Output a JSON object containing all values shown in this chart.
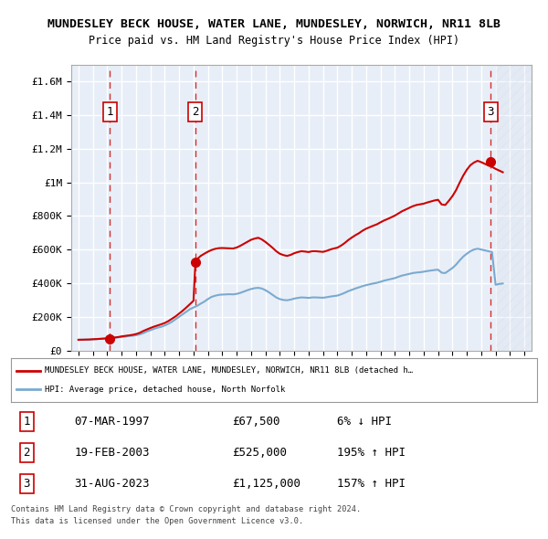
{
  "title1": "MUNDESLEY BECK HOUSE, WATER LANE, MUNDESLEY, NORWICH, NR11 8LB",
  "title2": "Price paid vs. HM Land Registry's House Price Index (HPI)",
  "ylabel": "",
  "background_color": "#ffffff",
  "plot_bg_color": "#e8eef7",
  "grid_color": "#ffffff",
  "hatch_color": "#c8d4e8",
  "sale_color": "#cc0000",
  "hpi_color": "#7aaad0",
  "ylim_max": 1700000,
  "sales": [
    {
      "date_num": 1997.18,
      "price": 67500,
      "label": "1"
    },
    {
      "date_num": 2003.13,
      "price": 525000,
      "label": "2"
    },
    {
      "date_num": 2023.66,
      "price": 1125000,
      "label": "3"
    }
  ],
  "sale_table": [
    {
      "num": "1",
      "date": "07-MAR-1997",
      "price": "£67,500",
      "hpi": "6% ↓ HPI"
    },
    {
      "num": "2",
      "date": "19-FEB-2003",
      "price": "£525,000",
      "hpi": "195% ↑ HPI"
    },
    {
      "num": "3",
      "date": "31-AUG-2023",
      "price": "£1,125,000",
      "hpi": "157% ↑ HPI"
    }
  ],
  "legend_line1": "MUNDESLEY BECK HOUSE, WATER LANE, MUNDESLEY, NORWICH, NR11 8LB (detached h…",
  "legend_line2": "HPI: Average price, detached house, North Norfolk",
  "footer1": "Contains HM Land Registry data © Crown copyright and database right 2024.",
  "footer2": "This data is licensed under the Open Government Licence v3.0.",
  "hpi_data": {
    "years": [
      1995.0,
      1995.25,
      1995.5,
      1995.75,
      1996.0,
      1996.25,
      1996.5,
      1996.75,
      1997.0,
      1997.25,
      1997.5,
      1997.75,
      1998.0,
      1998.25,
      1998.5,
      1998.75,
      1999.0,
      1999.25,
      1999.5,
      1999.75,
      2000.0,
      2000.25,
      2000.5,
      2000.75,
      2001.0,
      2001.25,
      2001.5,
      2001.75,
      2002.0,
      2002.25,
      2002.5,
      2002.75,
      2003.0,
      2003.25,
      2003.5,
      2003.75,
      2004.0,
      2004.25,
      2004.5,
      2004.75,
      2005.0,
      2005.25,
      2005.5,
      2005.75,
      2006.0,
      2006.25,
      2006.5,
      2006.75,
      2007.0,
      2007.25,
      2007.5,
      2007.75,
      2008.0,
      2008.25,
      2008.5,
      2008.75,
      2009.0,
      2009.25,
      2009.5,
      2009.75,
      2010.0,
      2010.25,
      2010.5,
      2010.75,
      2011.0,
      2011.25,
      2011.5,
      2011.75,
      2012.0,
      2012.25,
      2012.5,
      2012.75,
      2013.0,
      2013.25,
      2013.5,
      2013.75,
      2014.0,
      2014.25,
      2014.5,
      2014.75,
      2015.0,
      2015.25,
      2015.5,
      2015.75,
      2016.0,
      2016.25,
      2016.5,
      2016.75,
      2017.0,
      2017.25,
      2017.5,
      2017.75,
      2018.0,
      2018.25,
      2018.5,
      2018.75,
      2019.0,
      2019.25,
      2019.5,
      2019.75,
      2020.0,
      2020.25,
      2020.5,
      2020.75,
      2021.0,
      2021.25,
      2021.5,
      2021.75,
      2022.0,
      2022.25,
      2022.5,
      2022.75,
      2023.0,
      2023.25,
      2023.5,
      2023.75,
      2024.0,
      2024.25,
      2024.5
    ],
    "values": [
      63000,
      63500,
      64000,
      64500,
      66000,
      67000,
      68500,
      70000,
      71500,
      72500,
      75000,
      77000,
      80000,
      82000,
      85000,
      87000,
      90000,
      95000,
      102000,
      112000,
      120000,
      128000,
      135000,
      140000,
      148000,
      158000,
      170000,
      185000,
      200000,
      215000,
      230000,
      245000,
      255000,
      265000,
      278000,
      290000,
      305000,
      318000,
      325000,
      330000,
      332000,
      333000,
      334000,
      333000,
      336000,
      342000,
      350000,
      358000,
      365000,
      370000,
      372000,
      368000,
      358000,
      345000,
      330000,
      315000,
      305000,
      300000,
      298000,
      302000,
      308000,
      312000,
      315000,
      314000,
      312000,
      315000,
      315000,
      314000,
      313000,
      316000,
      320000,
      323000,
      326000,
      333000,
      342000,
      352000,
      360000,
      368000,
      375000,
      382000,
      388000,
      393000,
      398000,
      402000,
      408000,
      415000,
      420000,
      425000,
      430000,
      438000,
      445000,
      450000,
      455000,
      460000,
      463000,
      465000,
      468000,
      472000,
      475000,
      478000,
      480000,
      462000,
      460000,
      475000,
      490000,
      510000,
      535000,
      558000,
      575000,
      590000,
      600000,
      605000,
      600000,
      595000,
      590000,
      585000,
      390000,
      395000,
      398000
    ]
  },
  "price_paid_data": {
    "years": [
      1995.0,
      1995.25,
      1995.5,
      1995.75,
      1996.0,
      1996.25,
      1996.5,
      1996.75,
      1997.0,
      1997.18,
      1997.25,
      1997.5,
      1997.75,
      1998.0,
      1998.25,
      1998.5,
      1998.75,
      1999.0,
      1999.25,
      1999.5,
      1999.75,
      2000.0,
      2000.25,
      2000.5,
      2000.75,
      2001.0,
      2001.25,
      2001.5,
      2001.75,
      2002.0,
      2002.25,
      2002.5,
      2002.75,
      2003.0,
      2003.13,
      2003.25,
      2003.5,
      2003.75,
      2004.0,
      2004.25,
      2004.5,
      2004.75,
      2005.0,
      2005.25,
      2005.5,
      2005.75,
      2006.0,
      2006.25,
      2006.5,
      2006.75,
      2007.0,
      2007.25,
      2007.5,
      2007.75,
      2008.0,
      2008.25,
      2008.5,
      2008.75,
      2009.0,
      2009.25,
      2009.5,
      2009.75,
      2010.0,
      2010.25,
      2010.5,
      2010.75,
      2011.0,
      2011.25,
      2011.5,
      2011.75,
      2012.0,
      2012.25,
      2012.5,
      2012.75,
      2013.0,
      2013.25,
      2013.5,
      2013.75,
      2014.0,
      2014.25,
      2014.5,
      2014.75,
      2015.0,
      2015.25,
      2015.5,
      2015.75,
      2016.0,
      2016.25,
      2016.5,
      2016.75,
      2017.0,
      2017.25,
      2017.5,
      2017.75,
      2018.0,
      2018.25,
      2018.5,
      2018.75,
      2019.0,
      2019.25,
      2019.5,
      2019.75,
      2020.0,
      2020.25,
      2020.5,
      2020.75,
      2021.0,
      2021.25,
      2021.5,
      2021.75,
      2022.0,
      2022.25,
      2022.5,
      2022.75,
      2023.0,
      2023.25,
      2023.5,
      2023.66,
      2023.75,
      2024.0,
      2024.25,
      2024.5
    ],
    "values": [
      63000,
      63500,
      64000,
      64500,
      66000,
      67000,
      68500,
      70000,
      71500,
      67500,
      73000,
      76000,
      79000,
      83000,
      86000,
      89000,
      92000,
      97000,
      104000,
      115000,
      124000,
      133000,
      141000,
      148000,
      155000,
      163000,
      174000,
      188000,
      202000,
      219000,
      236000,
      255000,
      275000,
      295000,
      525000,
      543000,
      562000,
      575000,
      587000,
      597000,
      604000,
      608000,
      609000,
      608000,
      607000,
      606000,
      612000,
      622000,
      634000,
      646000,
      658000,
      665000,
      670000,
      660000,
      645000,
      628000,
      610000,
      590000,
      575000,
      567000,
      562000,
      568000,
      578000,
      585000,
      590000,
      588000,
      585000,
      590000,
      590000,
      588000,
      586000,
      592000,
      600000,
      606000,
      611000,
      623000,
      638000,
      656000,
      671000,
      685000,
      697000,
      712000,
      724000,
      733000,
      742000,
      750000,
      762000,
      773000,
      782000,
      792000,
      802000,
      815000,
      828000,
      838000,
      848000,
      858000,
      865000,
      869000,
      873000,
      880000,
      886000,
      892000,
      896000,
      868000,
      865000,
      890000,
      918000,
      953000,
      998000,
      1040000,
      1075000,
      1102000,
      1118000,
      1128000,
      1120000,
      1110000,
      1100000,
      1125000,
      1092000,
      1080000,
      1070000,
      1060000
    ]
  }
}
